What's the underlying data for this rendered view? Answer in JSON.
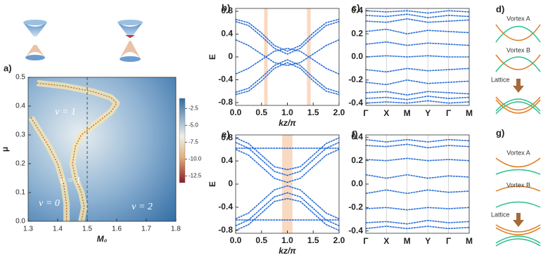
{
  "chart_data": [
    {
      "type": "heatmap",
      "panel": "a)",
      "xlabel": "M₀",
      "ylabel": "μ",
      "xlim": [
        1.3,
        1.8
      ],
      "xticks": [
        1.3,
        1.4,
        1.5,
        1.6,
        1.7,
        1.8
      ],
      "ylim": [
        0,
        0.5
      ],
      "yticks": [
        {
          "value": 0,
          "label": "0.0"
        },
        0.1,
        0.2,
        0.3,
        0.4,
        0.5
      ],
      "dashed_x": 1.5,
      "boundaries": [
        {
          "x": [
            1.33,
            1.42,
            1.52,
            1.58,
            1.6,
            1.58,
            1.53,
            1.48,
            1.46,
            1.45,
            1.46,
            1.48,
            1.49,
            1.48
          ],
          "y": [
            0.48,
            0.47,
            0.45,
            0.43,
            0.41,
            0.38,
            0.34,
            0.3,
            0.26,
            0.2,
            0.15,
            0.1,
            0.05,
            0.0
          ]
        },
        {
          "x": [
            1.31,
            1.34,
            1.37,
            1.4,
            1.42,
            1.43,
            1.43
          ],
          "y": [
            0.36,
            0.31,
            0.26,
            0.2,
            0.13,
            0.06,
            0.0
          ]
        }
      ],
      "annotations": [
        "ν = 1",
        "ν = 1",
        "ν = 0",
        "ν = 2"
      ],
      "colorbar_lim": [
        -13.5,
        -1
      ],
      "colorbar_ticks": [
        -2.5,
        {
          "value": -5,
          "label": "-5.0"
        },
        -7.5,
        {
          "value": -10,
          "label": "-10.0"
        },
        -12.5
      ]
    },
    {
      "type": "line",
      "panel": "b)",
      "xlabel": "kz/π",
      "ylabel": "E",
      "color": "#2a6fd8",
      "xlim": [
        0,
        2
      ],
      "xticks": [
        {
          "value": 0,
          "label": "0.0"
        },
        0.5,
        {
          "value": 1,
          "label": "1.0"
        },
        1.5,
        {
          "value": 2,
          "label": "2.0"
        }
      ],
      "ylim": [
        -0.85,
        0.85
      ],
      "yticks": [
        -0.8,
        -0.4,
        0,
        0.4,
        0.8
      ],
      "shaded": [
        [
          0.55,
          0.62
        ],
        [
          1.38,
          1.45
        ]
      ],
      "x": [
        0,
        0.25,
        0.5,
        0.75,
        1,
        1.25,
        1.5,
        1.75,
        2
      ],
      "series": [
        {
          "values": [
            0.66,
            0.6,
            0.42,
            0.2,
            0.1,
            0.2,
            0.42,
            0.6,
            0.66
          ]
        },
        {
          "values": [
            0.62,
            0.55,
            0.36,
            0.15,
            0.05,
            0.15,
            0.36,
            0.55,
            0.62
          ]
        },
        {
          "values": [
            0.3,
            0.2,
            0.05,
            -0.1,
            -0.15,
            -0.1,
            0.05,
            0.2,
            0.3
          ]
        },
        {
          "values": [
            -0.3,
            -0.2,
            -0.05,
            0.1,
            0.15,
            0.1,
            -0.05,
            -0.2,
            -0.3
          ]
        },
        {
          "values": [
            -0.62,
            -0.55,
            -0.36,
            -0.15,
            -0.05,
            -0.15,
            -0.36,
            -0.55,
            -0.62
          ]
        },
        {
          "values": [
            -0.66,
            -0.6,
            -0.42,
            -0.2,
            -0.1,
            -0.2,
            -0.42,
            -0.6,
            -0.66
          ]
        }
      ]
    },
    {
      "type": "band",
      "panel": "c)",
      "color": "#2a6fd8",
      "categories": [
        "Γ",
        "X",
        "M",
        "Y",
        "Γ",
        "M"
      ],
      "ylim": [
        -0.42,
        0.42
      ],
      "yticks": [
        -0.4,
        -0.2,
        {
          "value": 0,
          "label": "0.0"
        },
        0.2,
        0.4
      ],
      "series": [
        {
          "values": [
            0.4,
            0.39,
            0.4,
            0.38,
            0.4,
            0.39
          ]
        },
        {
          "values": [
            0.36,
            0.35,
            0.37,
            0.34,
            0.36,
            0.35
          ]
        },
        {
          "values": [
            0.31,
            0.3,
            0.33,
            0.3,
            0.31,
            0.32
          ]
        },
        {
          "values": [
            0.22,
            0.24,
            0.2,
            0.23,
            0.22,
            0.21
          ]
        },
        {
          "values": [
            0.11,
            0.13,
            0.1,
            0.12,
            0.11,
            0.1
          ]
        },
        {
          "values": [
            0.0,
            0.01,
            0.0,
            0.01,
            0.0,
            0.0
          ]
        },
        {
          "values": [
            -0.11,
            -0.13,
            -0.1,
            -0.12,
            -0.11,
            -0.1
          ]
        },
        {
          "values": [
            -0.22,
            -0.24,
            -0.2,
            -0.23,
            -0.22,
            -0.21
          ]
        },
        {
          "values": [
            -0.31,
            -0.3,
            -0.33,
            -0.3,
            -0.31,
            -0.32
          ]
        },
        {
          "values": [
            -0.36,
            -0.35,
            -0.37,
            -0.34,
            -0.36,
            -0.35
          ]
        },
        {
          "values": [
            -0.4,
            -0.39,
            -0.4,
            -0.38,
            -0.4,
            -0.39
          ]
        }
      ]
    },
    {
      "type": "line",
      "panel": "e)",
      "xlabel": "kz/π",
      "ylabel": "E",
      "color": "#2a6fd8",
      "xlim": [
        0,
        2
      ],
      "xticks": [
        {
          "value": 0,
          "label": "0.0"
        },
        0.5,
        {
          "value": 1,
          "label": "1.0"
        },
        1.5,
        {
          "value": 2,
          "label": "2.0"
        }
      ],
      "ylim": [
        -0.85,
        0.85
      ],
      "yticks": [
        -0.8,
        -0.4,
        0,
        0.4,
        0.8
      ],
      "shaded": [
        [
          0.9,
          1.1
        ]
      ],
      "x": [
        0,
        0.25,
        0.5,
        0.75,
        1,
        1.25,
        1.5,
        1.75,
        2
      ],
      "series": [
        {
          "values": [
            0.8,
            0.7,
            0.5,
            0.3,
            0.25,
            0.3,
            0.5,
            0.7,
            0.8
          ]
        },
        {
          "values": [
            0.72,
            0.62,
            0.42,
            0.22,
            0.15,
            0.22,
            0.42,
            0.62,
            0.72
          ]
        },
        {
          "values": [
            0.62,
            0.62,
            0.62,
            0.62,
            0.62,
            0.62,
            0.62,
            0.62,
            0.62
          ]
        },
        {
          "values": [
            0.6,
            0.5,
            0.3,
            0.1,
            0.03,
            0.1,
            0.3,
            0.5,
            0.6
          ]
        },
        {
          "values": [
            -0.6,
            -0.5,
            -0.3,
            -0.1,
            -0.03,
            -0.1,
            -0.3,
            -0.5,
            -0.6
          ]
        },
        {
          "values": [
            -0.62,
            -0.62,
            -0.62,
            -0.62,
            -0.62,
            -0.62,
            -0.62,
            -0.62,
            -0.62
          ]
        },
        {
          "values": [
            -0.72,
            -0.62,
            -0.42,
            -0.22,
            -0.15,
            -0.22,
            -0.42,
            -0.62,
            -0.72
          ]
        },
        {
          "values": [
            -0.8,
            -0.7,
            -0.5,
            -0.3,
            -0.25,
            -0.3,
            -0.5,
            -0.7,
            -0.8
          ]
        }
      ]
    },
    {
      "type": "band",
      "panel": "f)",
      "color": "#2a6fd8",
      "categories": [
        "Γ",
        "X",
        "M",
        "Y",
        "Γ",
        "M"
      ],
      "ylim": [
        -0.42,
        0.42
      ],
      "yticks": [
        -0.4,
        -0.2,
        {
          "value": 0,
          "label": "0.0"
        },
        0.2,
        0.4
      ],
      "series": [
        {
          "values": [
            0.38,
            0.36,
            0.38,
            0.36,
            0.38,
            0.37
          ]
        },
        {
          "values": [
            0.33,
            0.32,
            0.34,
            0.31,
            0.33,
            0.32
          ]
        },
        {
          "values": [
            0.21,
            0.2,
            0.22,
            0.2,
            0.21,
            0.2
          ]
        },
        {
          "values": [
            0.08,
            0.05,
            0.08,
            0.05,
            0.07,
            0.06
          ]
        },
        {
          "values": [
            -0.08,
            -0.05,
            -0.08,
            -0.05,
            -0.07,
            -0.06
          ]
        },
        {
          "values": [
            -0.21,
            -0.2,
            -0.22,
            -0.2,
            -0.21,
            -0.2
          ]
        },
        {
          "values": [
            -0.33,
            -0.32,
            -0.34,
            -0.31,
            -0.33,
            -0.32
          ]
        },
        {
          "values": [
            -0.38,
            -0.36,
            -0.38,
            -0.36,
            -0.38,
            -0.37
          ]
        }
      ]
    }
  ],
  "diagrams": [
    {
      "panel": "d)",
      "labels": [
        "Vortex A",
        "Vortex B",
        "Lattice"
      ]
    },
    {
      "panel": "g)",
      "labels": [
        "Vortex A",
        "Vortex B",
        "Lattice"
      ]
    }
  ]
}
